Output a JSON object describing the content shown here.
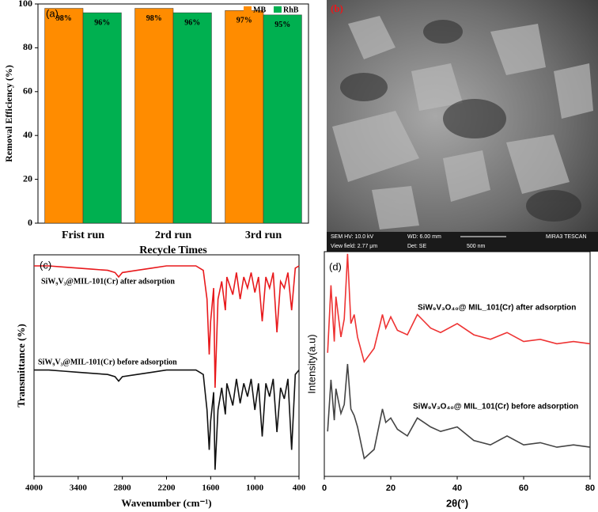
{
  "chart_data": [
    {
      "type": "bar",
      "panel_label": "(a)",
      "categories": [
        "Frist run",
        "2rd run",
        "3rd run"
      ],
      "series": [
        {
          "name": "MB",
          "color": "#ff8c00",
          "values": [
            98,
            98,
            97
          ],
          "value_labels": [
            "98%",
            "98%",
            "97%"
          ]
        },
        {
          "name": "RhB",
          "color": "#00b050",
          "values": [
            96,
            96,
            95
          ],
          "value_labels": [
            "96%",
            "96%",
            "95%"
          ]
        }
      ],
      "ylim": [
        0,
        100
      ],
      "yticks": [
        0,
        20,
        40,
        60,
        80,
        100
      ],
      "xlabel": "Recycle Times",
      "ylabel": "Removal Efficiency (%)",
      "legend": "upper right"
    },
    {
      "type": "line",
      "panel_label": "(c)",
      "x": [
        4000,
        3800,
        3600,
        3400,
        3200,
        3000,
        2900,
        2850,
        2800,
        2600,
        2400,
        2200,
        2000,
        1800,
        1700,
        1650,
        1620,
        1600,
        1560,
        1540,
        1500,
        1450,
        1400,
        1380,
        1300,
        1250,
        1200,
        1150,
        1100,
        1050,
        1000,
        950,
        900,
        850,
        800,
        750,
        700,
        650,
        600,
        550,
        500,
        450,
        400
      ],
      "series": [
        {
          "name": "SiW₉V₃@MIL-101(Cr) after adsorption",
          "color": "#e8191c",
          "values": [
            95,
            95,
            94.5,
            94,
            93.5,
            93,
            92,
            90,
            92,
            93,
            94,
            95,
            95,
            95,
            93,
            80,
            55,
            70,
            85,
            40,
            80,
            88,
            75,
            90,
            82,
            92,
            80,
            90,
            85,
            92,
            83,
            90,
            70,
            90,
            85,
            92,
            65,
            88,
            85,
            92,
            75,
            94,
            95
          ]
        },
        {
          "name": "SiW₉V₃@MIL-101(Cr) before adsorption",
          "color": "#111111",
          "values": [
            48,
            48,
            47.5,
            47,
            46.5,
            46,
            45,
            43,
            45,
            46,
            47,
            48,
            48,
            48,
            46,
            30,
            12,
            25,
            38,
            3,
            30,
            40,
            28,
            42,
            32,
            44,
            33,
            42,
            36,
            44,
            30,
            42,
            18,
            42,
            36,
            44,
            20,
            40,
            35,
            44,
            12,
            46,
            48
          ]
        }
      ],
      "xlim": [
        4000,
        400
      ],
      "xticks": [
        4000,
        3400,
        2800,
        2200,
        1600,
        1000,
        400
      ],
      "ylim": [
        0,
        100
      ],
      "xlabel": "Wavenumber (cm⁻¹)",
      "ylabel": "Transmittance (%)"
    },
    {
      "type": "line",
      "panel_label": "(d)",
      "x": [
        1,
        2,
        3,
        3.5,
        5,
        6,
        7,
        8,
        9,
        10,
        12,
        15,
        17.5,
        18.5,
        20,
        22,
        25,
        28,
        30,
        32,
        35,
        40,
        45,
        50,
        55,
        60,
        65,
        70,
        75,
        80
      ],
      "series": [
        {
          "name": "SiW₉V₃O₄₀@ MIL_101(Cr) after adsorption",
          "color": "#ee3333",
          "values": [
            55,
            85,
            60,
            80,
            62,
            70,
            99,
            68,
            72,
            62,
            51,
            57,
            72,
            66,
            71,
            65,
            63,
            72,
            69,
            66,
            64,
            68,
            63,
            61,
            64,
            60,
            61,
            59,
            60,
            59
          ]
        },
        {
          "name": "SiW₉V₃O₄₀@ MIL_101(Cr) before adsorption",
          "color": "#444444",
          "values": [
            20,
            43,
            25,
            39,
            28,
            32,
            50,
            30,
            27,
            22,
            8,
            12,
            30,
            24,
            26,
            21,
            18,
            26,
            24,
            22,
            20,
            22,
            16,
            14,
            18,
            14,
            15,
            13,
            14,
            13
          ]
        }
      ],
      "xlim": [
        0,
        80
      ],
      "xticks": [
        0,
        20,
        40,
        60,
        80
      ],
      "ylim": [
        0,
        100
      ],
      "xlabel": "2θ(°)",
      "ylabel": "Intensity(a.u)"
    }
  ],
  "image_panel": {
    "label": "(b)",
    "info": [
      "SEM HV: 10.0 kV",
      "WD: 6.00 mm",
      "MIRA3 TESCAN",
      "View field: 2.77 μm",
      "Det: SE",
      "500 nm"
    ]
  }
}
